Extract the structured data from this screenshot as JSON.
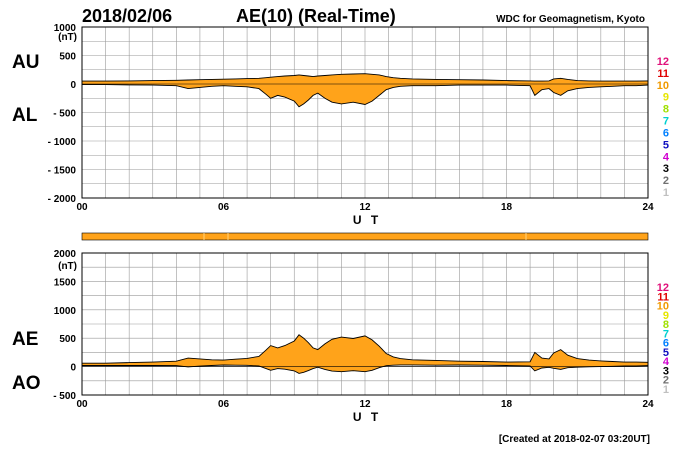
{
  "header": {
    "date": "2018/02/06",
    "title": "AE(10) (Real-Time)",
    "source": "WDC for Geomagnetism, Kyoto"
  },
  "footer": {
    "created": "[Created at 2018-02-07 03:20UT]"
  },
  "stations": {
    "labels": [
      "12",
      "11",
      "10",
      "9",
      "8",
      "7",
      "6",
      "5",
      "4",
      "3",
      "2",
      "1"
    ],
    "colors": [
      "#e0107a",
      "#e00000",
      "#f09a00",
      "#e6e600",
      "#a0e000",
      "#00d0d0",
      "#0080ff",
      "#1010c0",
      "#d000d0",
      "#000000",
      "#707070",
      "#c0c0c0"
    ]
  },
  "colors": {
    "fill": "#ffa31a",
    "outline": "#000000",
    "grid": "#9a9a9a"
  },
  "chart_data": [
    {
      "type": "area",
      "panel": "AU / AL",
      "unit": "(nT)",
      "left_labels": [
        "AU",
        "AL"
      ],
      "xlabel": "U T",
      "xlim": [
        0,
        24
      ],
      "xticks": [
        0,
        6,
        12,
        18,
        24
      ],
      "xtick_labels": [
        "00",
        "06",
        "12",
        "18",
        "24"
      ],
      "ylim": [
        -2000,
        1000
      ],
      "yticks": [
        1000,
        500,
        0,
        -500,
        -1000,
        -1500,
        -2000
      ],
      "ytick_labels": [
        "1000",
        "500",
        "0",
        "- 500",
        "- 1000",
        "- 1500",
        "- 2000"
      ],
      "grid": true,
      "series": [
        {
          "x": [
            0,
            1,
            2,
            3,
            4,
            4.5,
            5,
            5.5,
            6,
            6.5,
            7,
            7.5,
            7.8,
            8,
            8.3,
            8.6,
            9,
            9.2,
            9.4,
            9.6,
            9.8,
            10,
            10.3,
            10.6,
            11,
            11.5,
            12,
            12.3,
            12.6,
            12.9,
            13.2,
            13.5,
            14,
            15,
            16,
            17,
            18,
            19,
            19.2,
            19.5,
            19.8,
            20,
            20.3,
            20.6,
            21,
            21.5,
            22,
            22.5,
            23,
            23.5,
            24
          ],
          "values": [
            50,
            50,
            55,
            60,
            65,
            70,
            75,
            80,
            85,
            90,
            95,
            100,
            110,
            120,
            130,
            140,
            150,
            160,
            150,
            140,
            130,
            140,
            150,
            160,
            170,
            175,
            180,
            170,
            160,
            130,
            110,
            100,
            90,
            80,
            75,
            70,
            60,
            55,
            50,
            50,
            55,
            90,
            100,
            80,
            60,
            55,
            50,
            50,
            50,
            50,
            55
          ]
        },
        {
          "x": [
            0,
            1,
            2,
            3,
            4,
            4.5,
            5,
            5.5,
            6,
            6.5,
            7,
            7.5,
            7.8,
            8,
            8.3,
            8.6,
            9,
            9.2,
            9.4,
            9.6,
            9.8,
            10,
            10.3,
            10.6,
            11,
            11.5,
            12,
            12.3,
            12.6,
            12.9,
            13.2,
            13.5,
            14,
            15,
            16,
            17,
            18,
            19,
            19.2,
            19.5,
            19.8,
            20,
            20.3,
            20.6,
            21,
            21.5,
            22,
            22.5,
            23,
            23.5,
            24
          ],
          "values": [
            -10,
            -10,
            -15,
            -20,
            -30,
            -80,
            -60,
            -40,
            -30,
            -40,
            -50,
            -80,
            -180,
            -250,
            -200,
            -230,
            -300,
            -400,
            -350,
            -280,
            -200,
            -160,
            -250,
            -320,
            -350,
            -320,
            -360,
            -300,
            -200,
            -100,
            -60,
            -40,
            -30,
            -30,
            -20,
            -20,
            -20,
            -30,
            -200,
            -100,
            -80,
            -150,
            -200,
            -120,
            -80,
            -60,
            -50,
            -40,
            -30,
            -30,
            -20
          ]
        }
      ]
    },
    {
      "type": "area",
      "panel": "AE / AO",
      "unit": "(nT)",
      "left_labels": [
        "AE",
        "AO"
      ],
      "xlabel": "U T",
      "xlim": [
        0,
        24
      ],
      "xticks": [
        0,
        6,
        12,
        18,
        24
      ],
      "xtick_labels": [
        "00",
        "06",
        "12",
        "18",
        "24"
      ],
      "ylim": [
        -500,
        2000
      ],
      "yticks": [
        2000,
        1500,
        1000,
        500,
        0,
        -500
      ],
      "ytick_labels": [
        "2000",
        "1500",
        "1000",
        "500",
        "0",
        "- 500"
      ],
      "grid": true,
      "series": [
        {
          "x": [
            0,
            1,
            2,
            3,
            4,
            4.5,
            5,
            5.5,
            6,
            6.5,
            7,
            7.5,
            7.8,
            8,
            8.3,
            8.6,
            9,
            9.2,
            9.4,
            9.6,
            9.8,
            10,
            10.3,
            10.6,
            11,
            11.5,
            12,
            12.3,
            12.6,
            12.9,
            13.2,
            13.5,
            14,
            15,
            16,
            17,
            18,
            19,
            19.2,
            19.5,
            19.8,
            20,
            20.3,
            20.6,
            21,
            21.5,
            22,
            22.5,
            23,
            23.5,
            24
          ],
          "values": [
            60,
            60,
            70,
            80,
            95,
            150,
            135,
            120,
            115,
            130,
            145,
            180,
            290,
            370,
            330,
            370,
            450,
            560,
            500,
            420,
            330,
            300,
            400,
            480,
            520,
            495,
            540,
            470,
            360,
            230,
            170,
            140,
            120,
            110,
            95,
            90,
            80,
            85,
            250,
            150,
            135,
            240,
            300,
            200,
            140,
            115,
            100,
            90,
            80,
            80,
            75
          ]
        },
        {
          "x": [
            0,
            1,
            2,
            3,
            4,
            4.5,
            5,
            5.5,
            6,
            6.5,
            7,
            7.5,
            7.8,
            8,
            8.3,
            8.6,
            9,
            9.2,
            9.4,
            9.6,
            9.8,
            10,
            10.3,
            10.6,
            11,
            11.5,
            12,
            12.3,
            12.6,
            12.9,
            13.2,
            13.5,
            14,
            15,
            16,
            17,
            18,
            19,
            19.2,
            19.5,
            19.8,
            20,
            20.3,
            20.6,
            21,
            21.5,
            22,
            22.5,
            23,
            23.5,
            24
          ],
          "values": [
            20,
            20,
            20,
            20,
            18,
            -5,
            8,
            20,
            28,
            25,
            23,
            10,
            -35,
            -65,
            -35,
            -45,
            -75,
            -120,
            -100,
            -70,
            -35,
            -10,
            -50,
            -80,
            -90,
            -72,
            -90,
            -65,
            -20,
            15,
            25,
            30,
            30,
            25,
            28,
            25,
            20,
            13,
            -75,
            -25,
            -13,
            -30,
            -50,
            -20,
            -10,
            -3,
            0,
            5,
            10,
            10,
            18
          ]
        }
      ]
    }
  ]
}
